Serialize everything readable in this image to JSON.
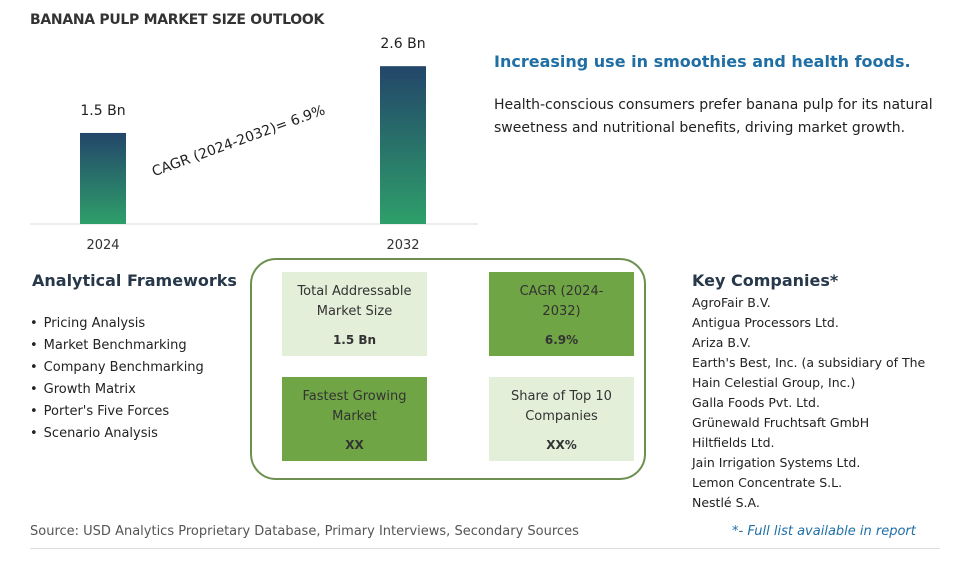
{
  "chart_data": {
    "type": "bar",
    "title": "BANANA PULP MARKET SIZE OUTLOOK",
    "categories": [
      "2024",
      "2032"
    ],
    "values": [
      1.5,
      2.6
    ],
    "value_labels": [
      "1.5 Bn",
      "2.6 Bn"
    ],
    "annotation": "CAGR (2024-2032)=  6.9%"
  },
  "highlight": {
    "title": "Increasing use in smoothies and health foods.",
    "text": "Health-conscious consumers prefer banana pulp for its natural sweetness and nutritional benefits, driving market growth."
  },
  "frameworks": {
    "title": "Analytical Frameworks",
    "items": [
      "Pricing Analysis",
      "Market Benchmarking",
      "Company Benchmarking",
      "Growth Matrix",
      "Porter's Five Forces",
      "Scenario Analysis"
    ]
  },
  "summary": {
    "cards": [
      {
        "label": "Total Addressable Market Size",
        "value": "1.5 Bn"
      },
      {
        "label": "CAGR (2024-2032)",
        "value": "6.9%"
      },
      {
        "label": "Fastest Growing Market",
        "value": "XX"
      },
      {
        "label": "Share of Top 10 Companies",
        "value": "XX%"
      }
    ]
  },
  "companies": {
    "title": "Key Companies*",
    "items": [
      "AgroFair B.V.",
      "Antigua Processors Ltd.",
      "Ariza B.V.",
      "Earth's Best, Inc. (a subsidiary of The Hain Celestial Group, Inc.)",
      "Galla Foods Pvt. Ltd.",
      "Grünewald Fruchtsaft GmbH",
      "Hiltfields Ltd.",
      "Jain Irrigation Systems Ltd.",
      "Lemon Concentrate S.L.",
      "Nestlé S.A."
    ],
    "note": "*- Full list available in report"
  },
  "source": "Source: USD Analytics Proprietary Database, Primary Interviews, Secondary Sources"
}
